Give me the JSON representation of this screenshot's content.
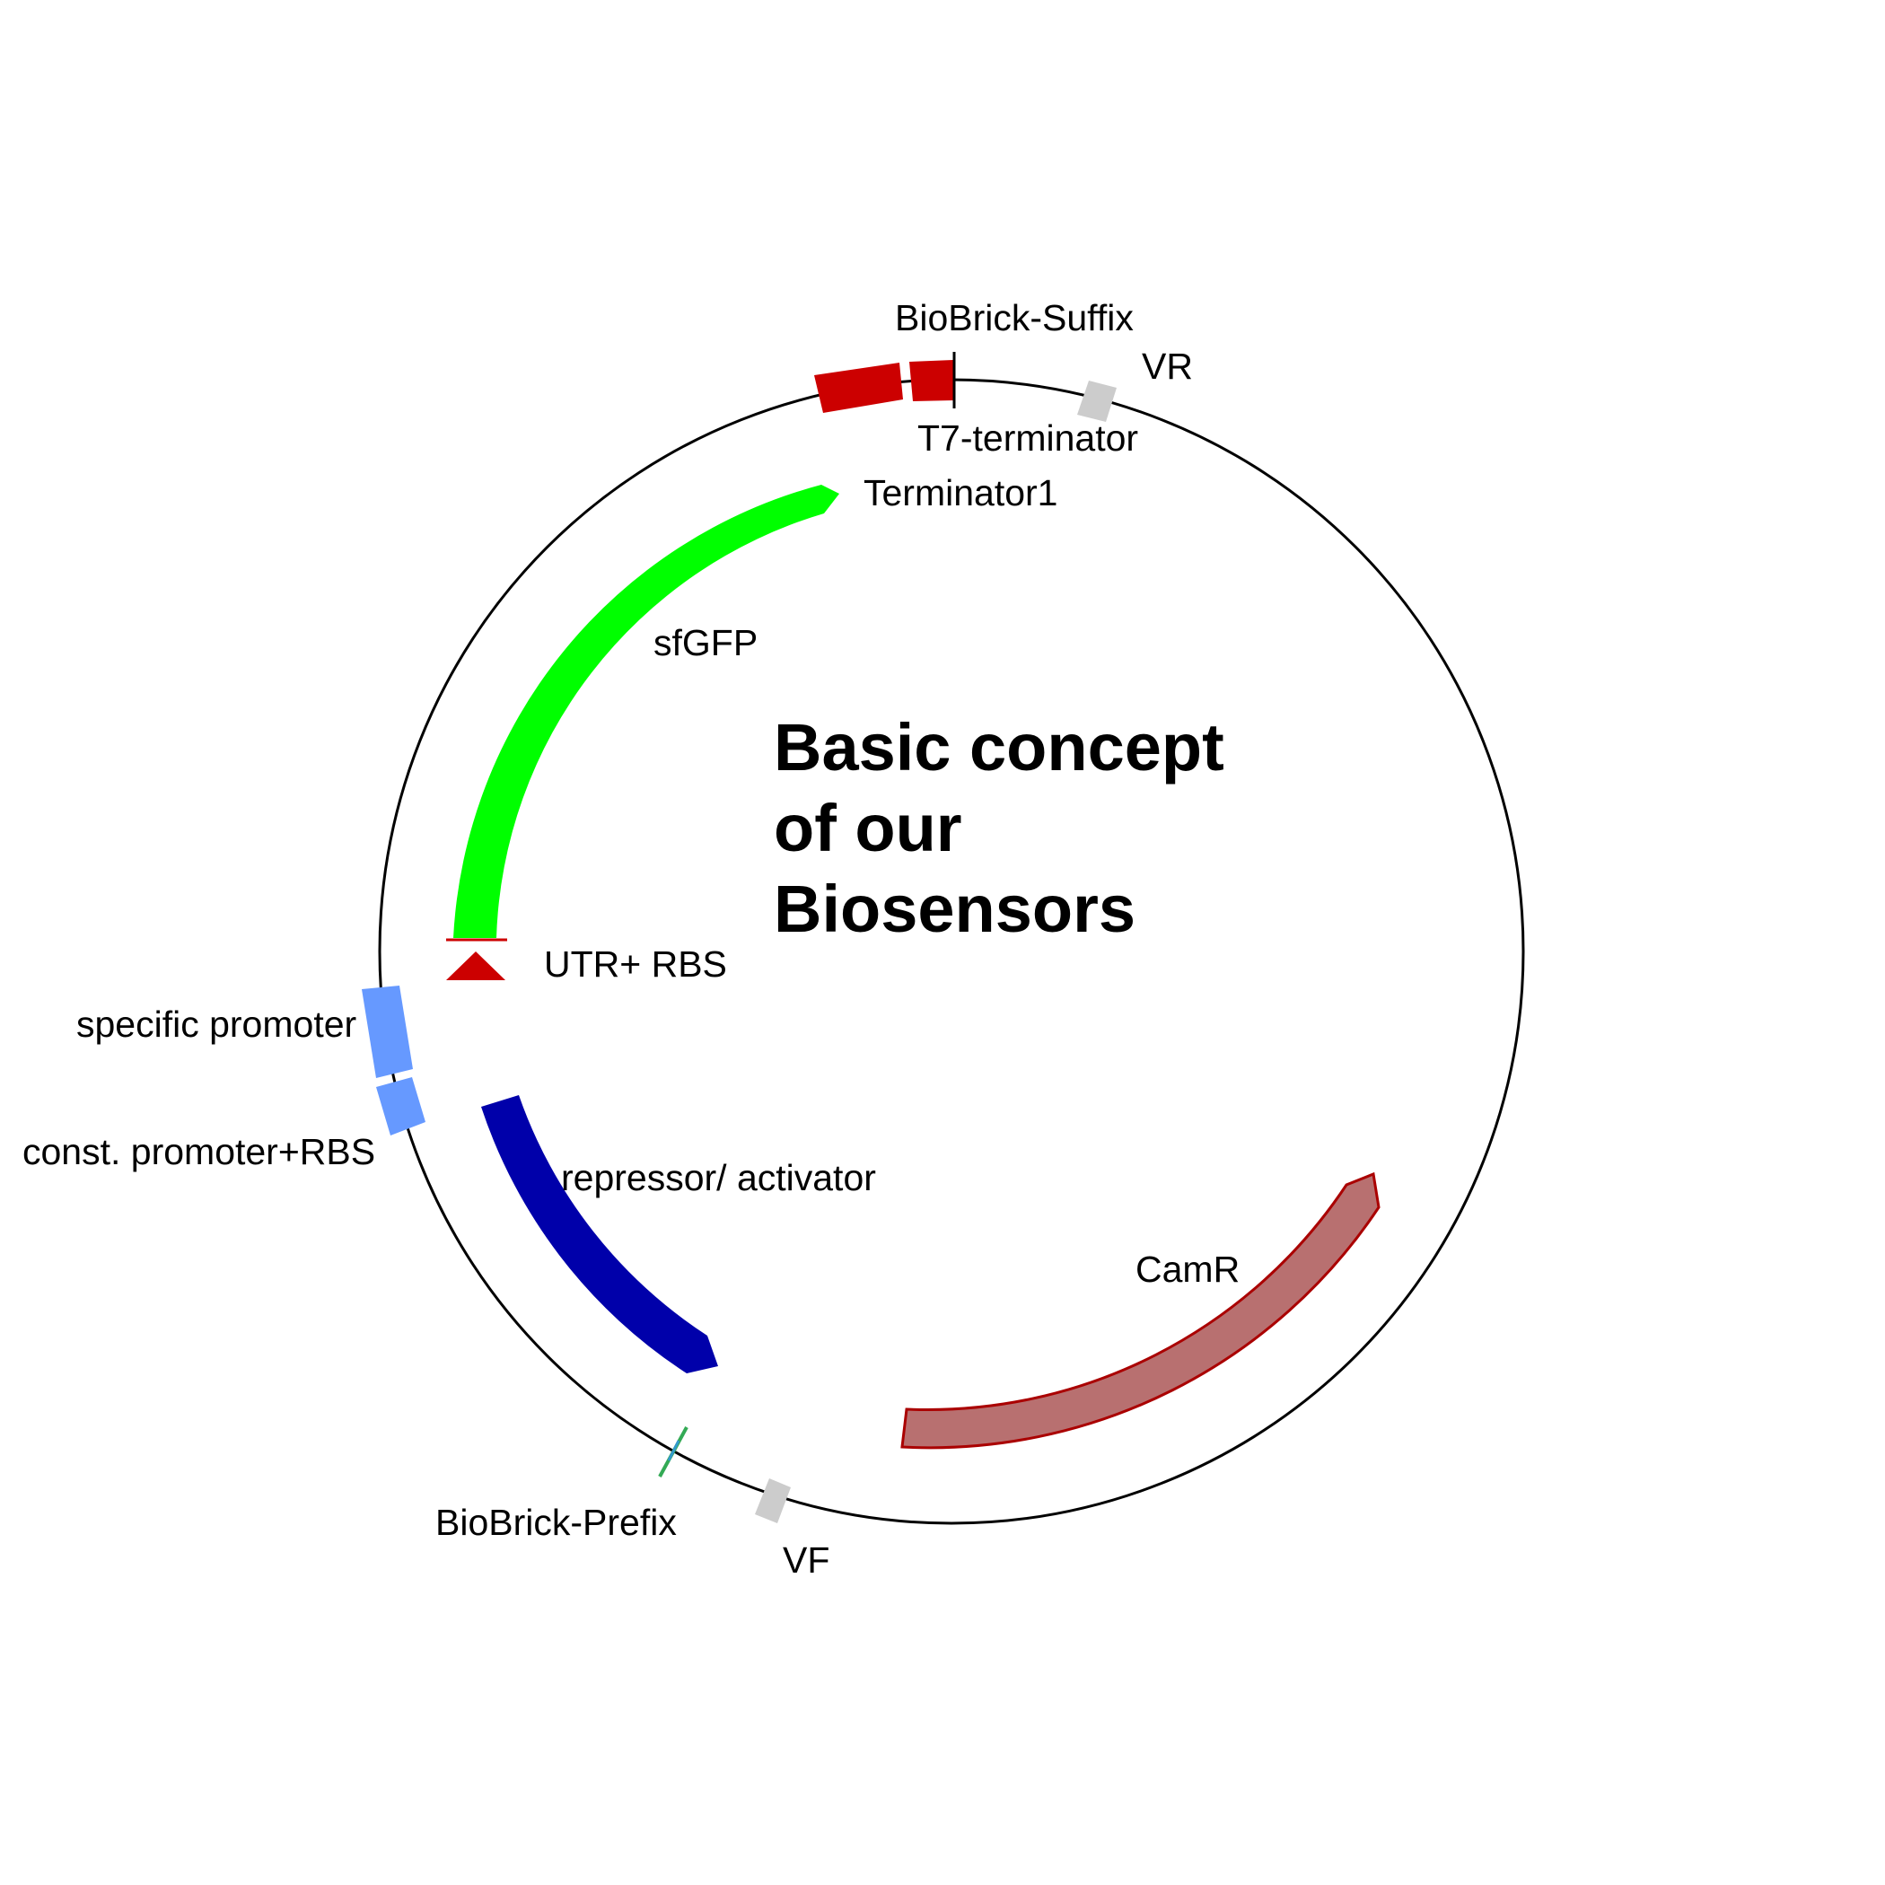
{
  "title_lines": [
    "Basic concept",
    "of our",
    "Biosensors"
  ],
  "features": {
    "biobrick_suffix": {
      "label": "BioBrick-Suffix",
      "color": "#cc0000"
    },
    "t7_terminator": {
      "label": "T7-terminator",
      "color": "#cc0000"
    },
    "vr": {
      "label": "VR",
      "color": "#cccccc"
    },
    "terminator1": {
      "label": "Terminator1",
      "color": "#00ff00"
    },
    "sfgfp": {
      "label": "sfGFP",
      "color": "#00ff00"
    },
    "utr_rbs": {
      "label": "UTR+ RBS",
      "color": "#cc0000"
    },
    "specific_promoter": {
      "label": "specific promoter",
      "color": "#6699ff"
    },
    "const_promoter_rbs": {
      "label": "const. promoter+RBS",
      "color": "#6699ff"
    },
    "repressor_activator": {
      "label": "repressor/ activator",
      "color": "#0000aa"
    },
    "camr": {
      "label": "CamR",
      "color": "#b87070"
    },
    "biobrick_prefix": {
      "label": "BioBrick-Prefix",
      "color": "#3399cc"
    },
    "vf": {
      "label": "VF",
      "color": "#cccccc"
    }
  },
  "backbone_color": "#000000"
}
